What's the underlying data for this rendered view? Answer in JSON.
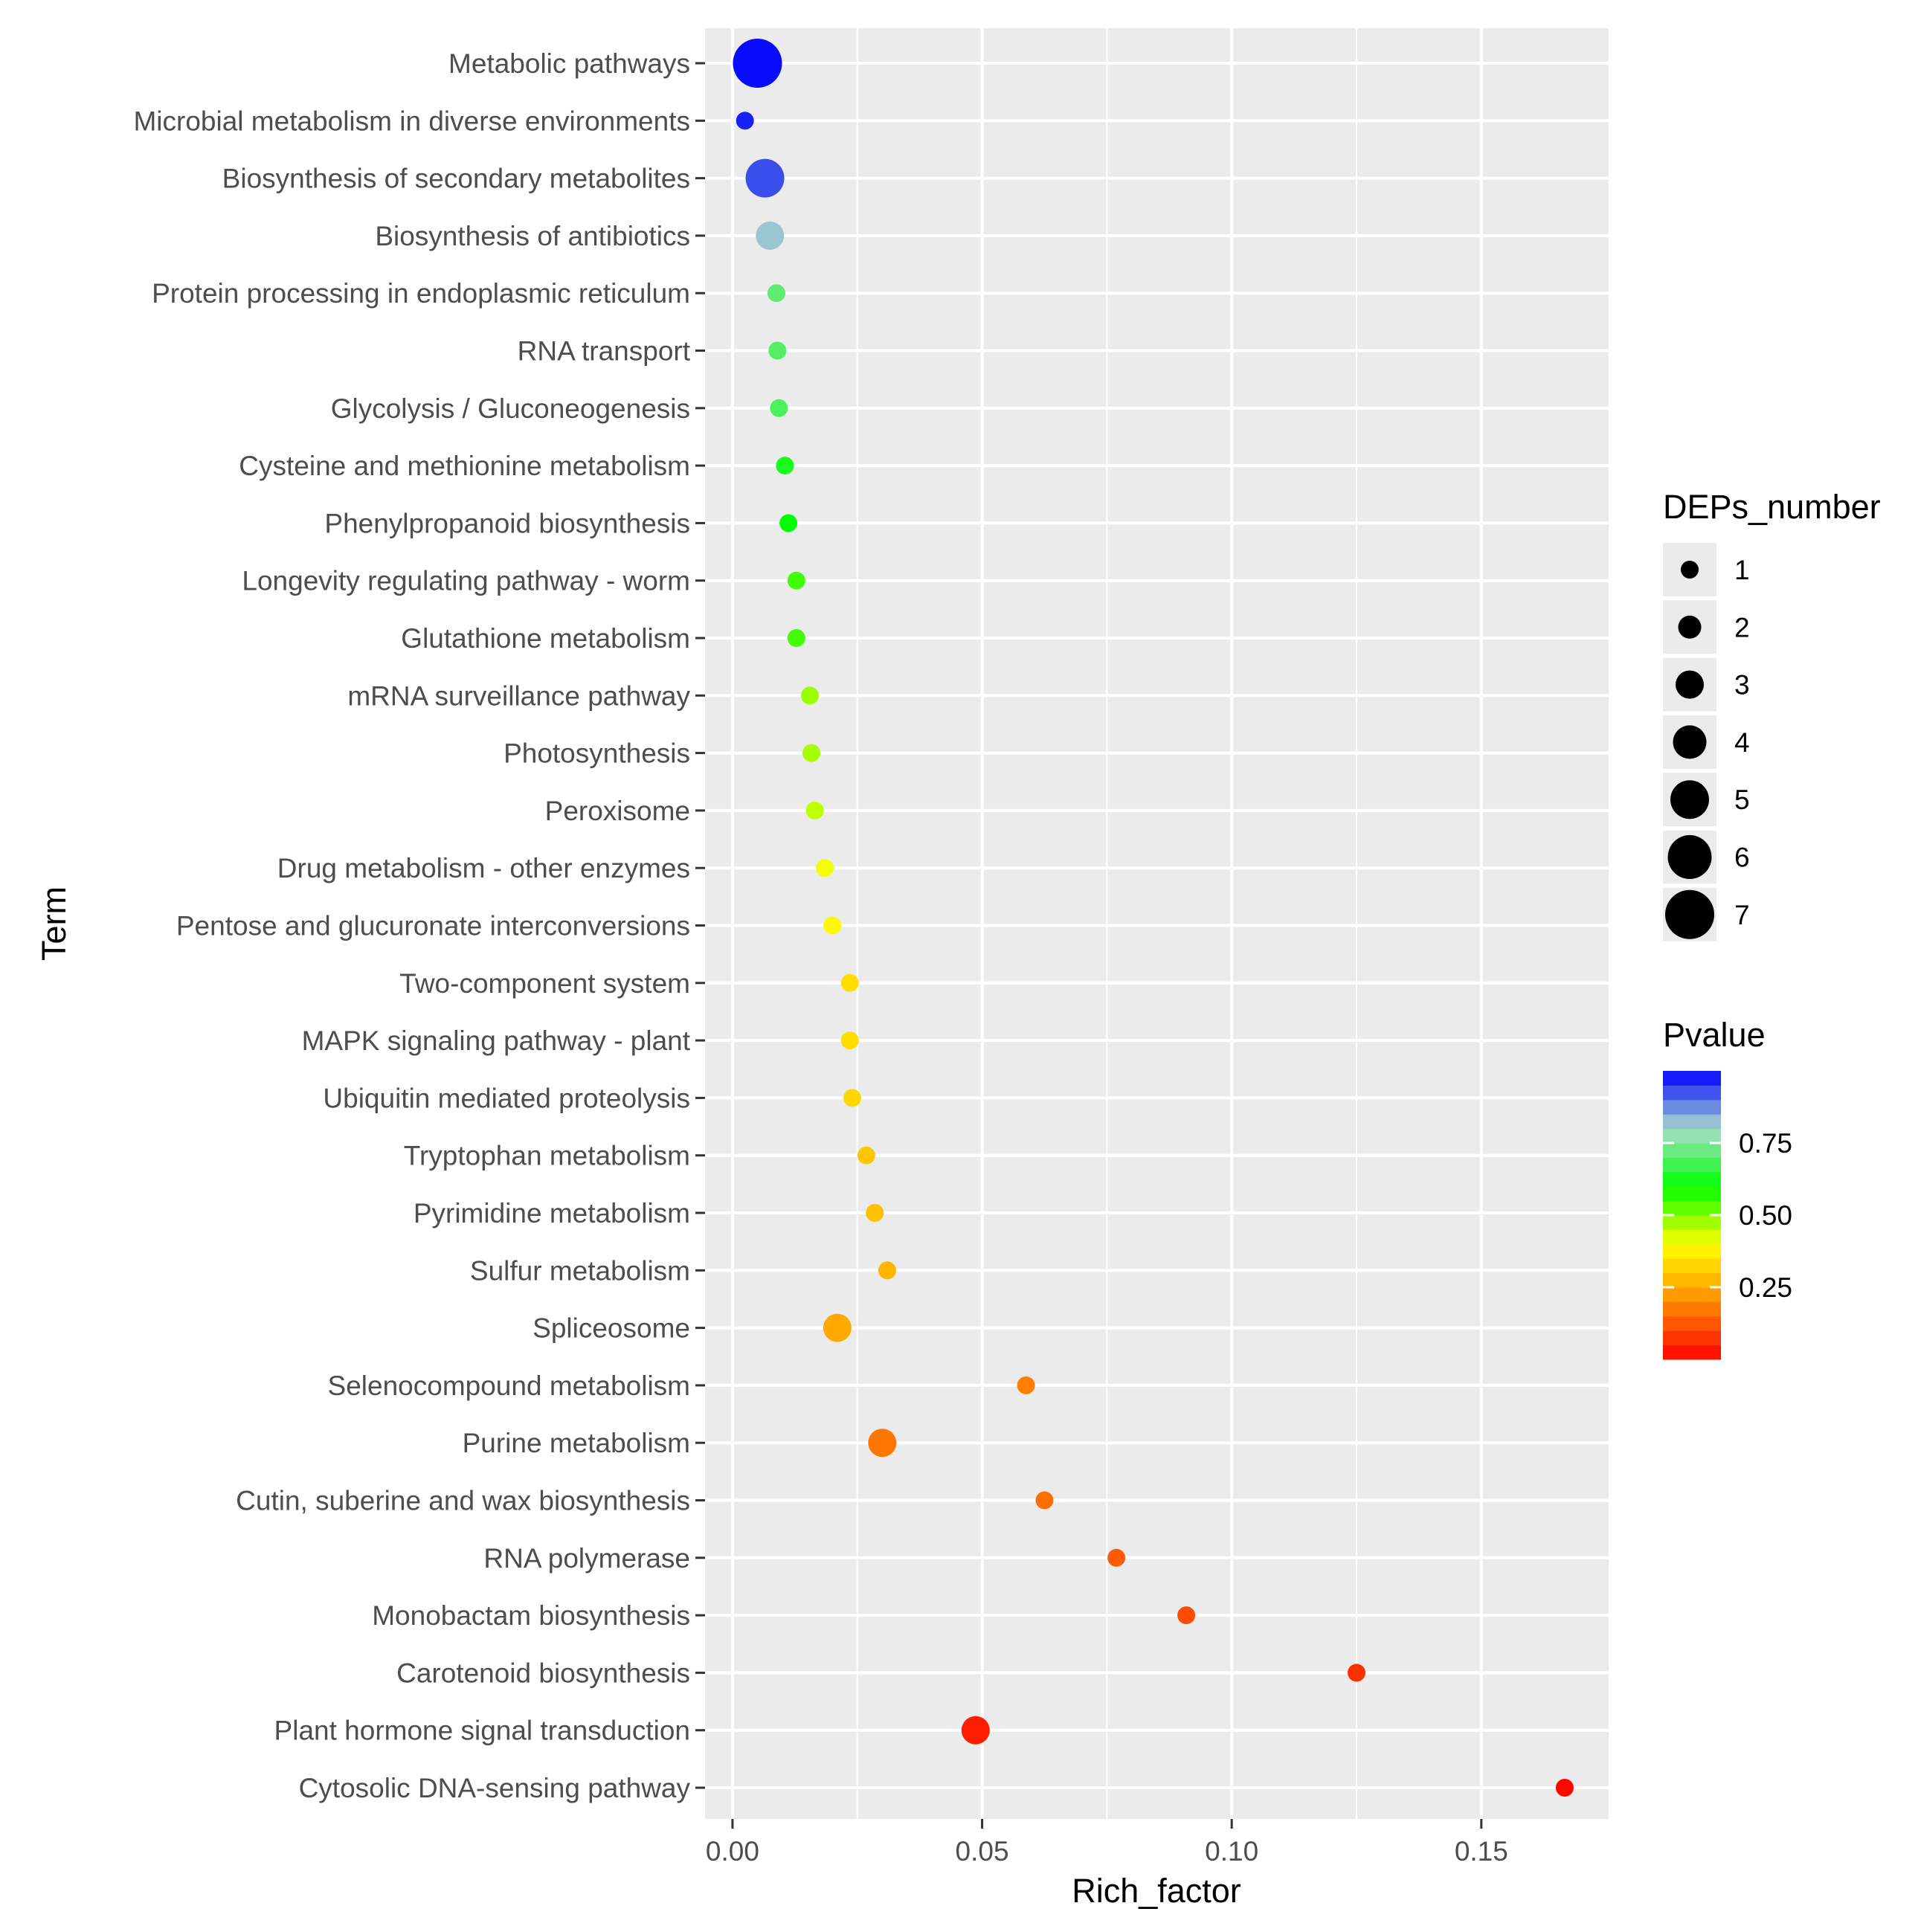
{
  "chart_data": {
    "type": "scatter",
    "title": "",
    "xlabel": "Rich_factor",
    "ylabel": "Term",
    "xlim": [
      -0.0055,
      0.1755
    ],
    "x_ticks": [
      "0.00",
      "0.05",
      "0.10",
      "0.15"
    ],
    "x_tick_values": [
      0.0,
      0.05,
      0.1,
      0.15
    ],
    "grid": true,
    "points": [
      {
        "term": "Metabolic pathways",
        "rich_factor": 0.005,
        "deps_number": 7,
        "pvalue": 0.99
      },
      {
        "term": "Microbial metabolism in diverse environments",
        "rich_factor": 0.0025,
        "deps_number": 1,
        "pvalue": 0.97
      },
      {
        "term": "Biosynthesis of secondary metabolites",
        "rich_factor": 0.0065,
        "deps_number": 5,
        "pvalue": 0.93
      },
      {
        "term": "Biosynthesis of antibiotics",
        "rich_factor": 0.0075,
        "deps_number": 3,
        "pvalue": 0.82
      },
      {
        "term": "Protein processing in endoplasmic reticulum",
        "rich_factor": 0.0088,
        "deps_number": 1,
        "pvalue": 0.71
      },
      {
        "term": "RNA transport",
        "rich_factor": 0.009,
        "deps_number": 1,
        "pvalue": 0.7
      },
      {
        "term": "Glycolysis / Gluconeogenesis",
        "rich_factor": 0.0093,
        "deps_number": 1,
        "pvalue": 0.69
      },
      {
        "term": "Cysteine and methionine metabolism",
        "rich_factor": 0.0105,
        "deps_number": 1,
        "pvalue": 0.63
      },
      {
        "term": "Phenylpropanoid biosynthesis",
        "rich_factor": 0.0112,
        "deps_number": 1,
        "pvalue": 0.6
      },
      {
        "term": "Longevity regulating pathway - worm",
        "rich_factor": 0.0128,
        "deps_number": 1,
        "pvalue": 0.55
      },
      {
        "term": "Glutathione metabolism",
        "rich_factor": 0.0128,
        "deps_number": 1,
        "pvalue": 0.55
      },
      {
        "term": "mRNA surveillance pathway",
        "rich_factor": 0.0155,
        "deps_number": 1,
        "pvalue": 0.48
      },
      {
        "term": "Photosynthesis",
        "rich_factor": 0.0158,
        "deps_number": 1,
        "pvalue": 0.47
      },
      {
        "term": "Peroxisome",
        "rich_factor": 0.0165,
        "deps_number": 1,
        "pvalue": 0.45
      },
      {
        "term": "Drug metabolism - other enzymes",
        "rich_factor": 0.0185,
        "deps_number": 1,
        "pvalue": 0.41
      },
      {
        "term": "Pentose and glucuronate interconversions",
        "rich_factor": 0.02,
        "deps_number": 1,
        "pvalue": 0.39
      },
      {
        "term": "Two-component system",
        "rich_factor": 0.0235,
        "deps_number": 1,
        "pvalue": 0.34
      },
      {
        "term": "MAPK signaling pathway - plant",
        "rich_factor": 0.0235,
        "deps_number": 1,
        "pvalue": 0.34
      },
      {
        "term": "Ubiquitin mediated proteolysis",
        "rich_factor": 0.024,
        "deps_number": 1,
        "pvalue": 0.33
      },
      {
        "term": "Tryptophan metabolism",
        "rich_factor": 0.0268,
        "deps_number": 1,
        "pvalue": 0.3
      },
      {
        "term": "Pyrimidine metabolism",
        "rich_factor": 0.0285,
        "deps_number": 1,
        "pvalue": 0.29
      },
      {
        "term": "Sulfur metabolism",
        "rich_factor": 0.031,
        "deps_number": 1,
        "pvalue": 0.27
      },
      {
        "term": "Spliceosome",
        "rich_factor": 0.021,
        "deps_number": 3,
        "pvalue": 0.25
      },
      {
        "term": "Selenocompound metabolism",
        "rich_factor": 0.0588,
        "deps_number": 1,
        "pvalue": 0.18
      },
      {
        "term": "Purine metabolism",
        "rich_factor": 0.03,
        "deps_number": 3,
        "pvalue": 0.17
      },
      {
        "term": "Cutin, suberine and wax biosynthesis",
        "rich_factor": 0.0625,
        "deps_number": 1,
        "pvalue": 0.16
      },
      {
        "term": "RNA polymerase",
        "rich_factor": 0.0769,
        "deps_number": 1,
        "pvalue": 0.13
      },
      {
        "term": "Monobactam biosynthesis",
        "rich_factor": 0.0909,
        "deps_number": 1,
        "pvalue": 0.11
      },
      {
        "term": "Carotenoid biosynthesis",
        "rich_factor": 0.125,
        "deps_number": 1,
        "pvalue": 0.07
      },
      {
        "term": "Plant hormone signal transduction",
        "rich_factor": 0.0487,
        "deps_number": 3,
        "pvalue": 0.04
      },
      {
        "term": "Cytosolic DNA-sensing pathway",
        "rich_factor": 0.1667,
        "deps_number": 1,
        "pvalue": 0.01
      }
    ],
    "legend_size": {
      "title": "DEPs_number",
      "values": [
        1,
        2,
        3,
        4,
        5,
        6,
        7
      ],
      "labels": [
        "1",
        "2",
        "3",
        "4",
        "5",
        "6",
        "7"
      ]
    },
    "legend_color": {
      "title": "Pvalue",
      "range": [
        0.0,
        1.0
      ],
      "tick_values": [
        0.75,
        0.5,
        0.25
      ],
      "tick_labels": [
        "0.75",
        "0.50",
        "0.25"
      ],
      "colors_low_to_high": [
        "#ff0000",
        "#ff8c00",
        "#ffff00",
        "#00ff00",
        "#aaddcc",
        "#0000ff"
      ]
    }
  }
}
